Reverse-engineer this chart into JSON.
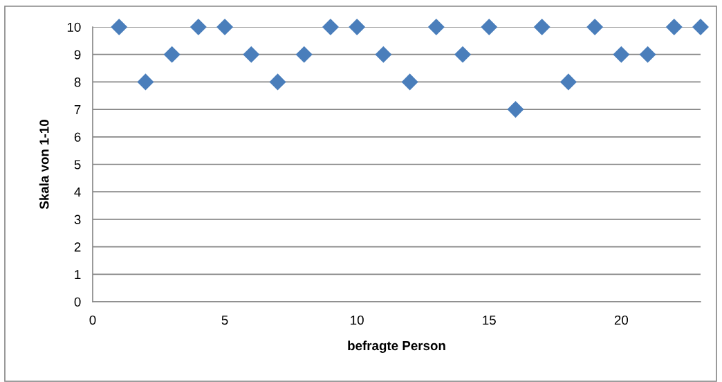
{
  "chart_data": {
    "type": "scatter",
    "xlabel": "befragte Person",
    "ylabel": "Skala von 1-10",
    "x": [
      1,
      2,
      3,
      4,
      5,
      6,
      7,
      8,
      9,
      10,
      11,
      12,
      13,
      14,
      15,
      16,
      17,
      18,
      19,
      20,
      21,
      22,
      23
    ],
    "series": [
      {
        "color": "#4a7ebb",
        "values": [
          10,
          8,
          9,
          10,
          10,
          9,
          8,
          9,
          10,
          10,
          9,
          8,
          10,
          9,
          10,
          7,
          10,
          8,
          10,
          9,
          9,
          10,
          10
        ]
      }
    ],
    "marker": "diamond",
    "xlim": [
      0,
      23
    ],
    "ylim": [
      0,
      10
    ],
    "xticks": [
      0,
      5,
      10,
      15,
      20
    ],
    "yticks": [
      0,
      1,
      2,
      3,
      4,
      5,
      6,
      7,
      8,
      9,
      10
    ],
    "grid": "y"
  }
}
